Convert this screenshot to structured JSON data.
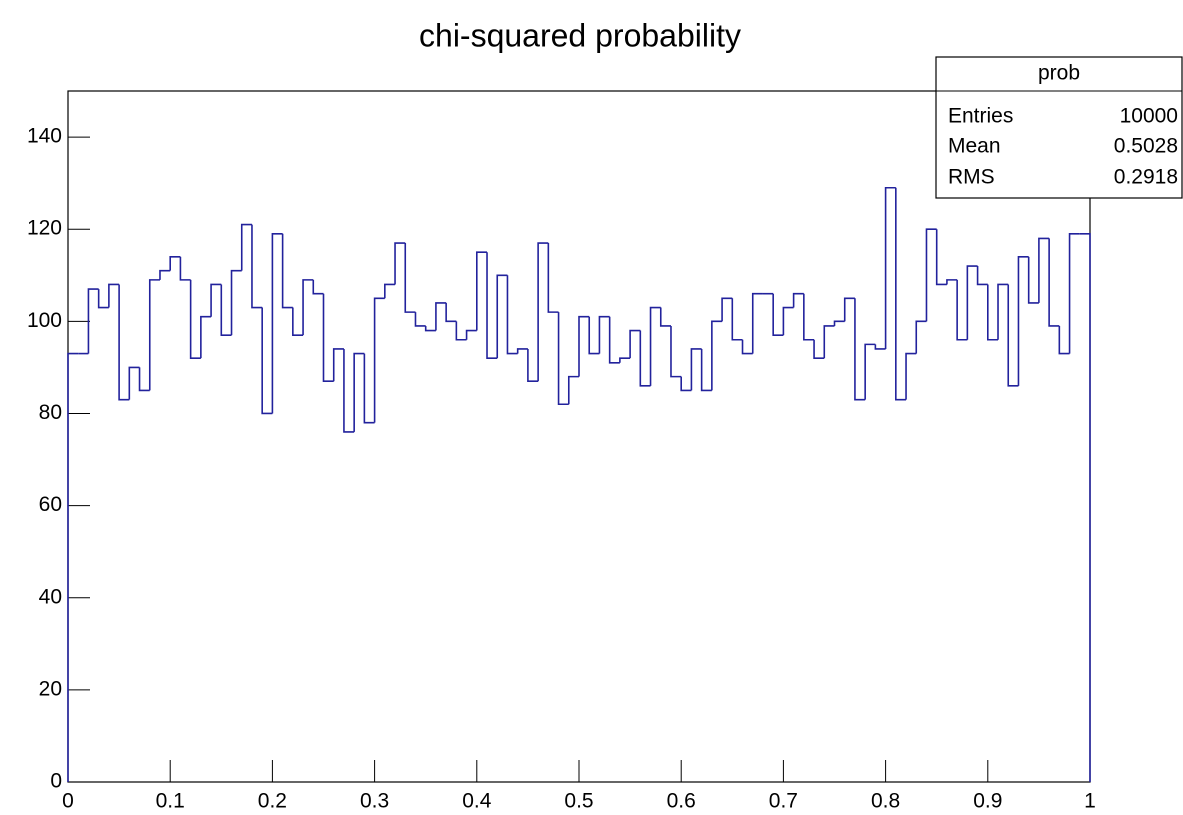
{
  "chart_data": {
    "type": "histogram",
    "title": "chi-squared probability",
    "bins": [
      0,
      0.01,
      0.02,
      0.03,
      0.04,
      0.05,
      0.06,
      0.07,
      0.08,
      0.09,
      0.1,
      0.11,
      0.12,
      0.13,
      0.14,
      0.15,
      0.16,
      0.17,
      0.18,
      0.19,
      0.2,
      0.21,
      0.22,
      0.23,
      0.24,
      0.25,
      0.26,
      0.27,
      0.28,
      0.29,
      0.3,
      0.31,
      0.32,
      0.33,
      0.34,
      0.35,
      0.36,
      0.37,
      0.38,
      0.39,
      0.4,
      0.41,
      0.42,
      0.43,
      0.44,
      0.45,
      0.46,
      0.47,
      0.48,
      0.49,
      0.5,
      0.51,
      0.52,
      0.53,
      0.54,
      0.55,
      0.56,
      0.57,
      0.58,
      0.59,
      0.6,
      0.61,
      0.62,
      0.63,
      0.64,
      0.65,
      0.66,
      0.67,
      0.68,
      0.69,
      0.7,
      0.71,
      0.72,
      0.73,
      0.74,
      0.75,
      0.76,
      0.77,
      0.78,
      0.79,
      0.8,
      0.81,
      0.82,
      0.83,
      0.84,
      0.85,
      0.86,
      0.87,
      0.88,
      0.89,
      0.9,
      0.91,
      0.92,
      0.93,
      0.94,
      0.95,
      0.96,
      0.97,
      0.98,
      0.99,
      1
    ],
    "values": [
      93,
      93,
      107,
      103,
      108,
      83,
      90,
      85,
      109,
      111,
      114,
      109,
      92,
      101,
      108,
      97,
      111,
      121,
      103,
      80,
      119,
      103,
      97,
      109,
      106,
      87,
      94,
      76,
      93,
      78,
      105,
      108,
      117,
      102,
      99,
      98,
      104,
      100,
      96,
      98,
      115,
      92,
      110,
      93,
      94,
      87,
      117,
      102,
      82,
      88,
      101,
      93,
      101,
      91,
      92,
      98,
      86,
      103,
      99,
      88,
      85,
      94,
      85,
      100,
      105,
      96,
      93,
      106,
      106,
      97,
      103,
      106,
      96,
      92,
      99,
      100,
      105,
      83,
      95,
      94,
      129,
      83,
      93,
      100,
      120,
      108,
      109,
      96,
      112,
      108,
      96,
      108,
      86,
      114,
      104,
      118,
      99,
      93,
      119,
      119
    ],
    "color": "#22229c",
    "xlim": [
      0,
      1
    ],
    "xticks": [
      0,
      0.1,
      0.2,
      0.3,
      0.4,
      0.5,
      0.6,
      0.7,
      0.8,
      0.9,
      1
    ],
    "ylim": [
      0,
      150
    ],
    "yticks": [
      0,
      20,
      40,
      60,
      80,
      100,
      120,
      140
    ],
    "stats": {
      "title": "prob",
      "rows": [
        {
          "label": "Entries",
          "value": 10000
        },
        {
          "label": "Mean",
          "value": 0.5028
        },
        {
          "label": "RMS",
          "value": 0.2918
        }
      ]
    }
  }
}
